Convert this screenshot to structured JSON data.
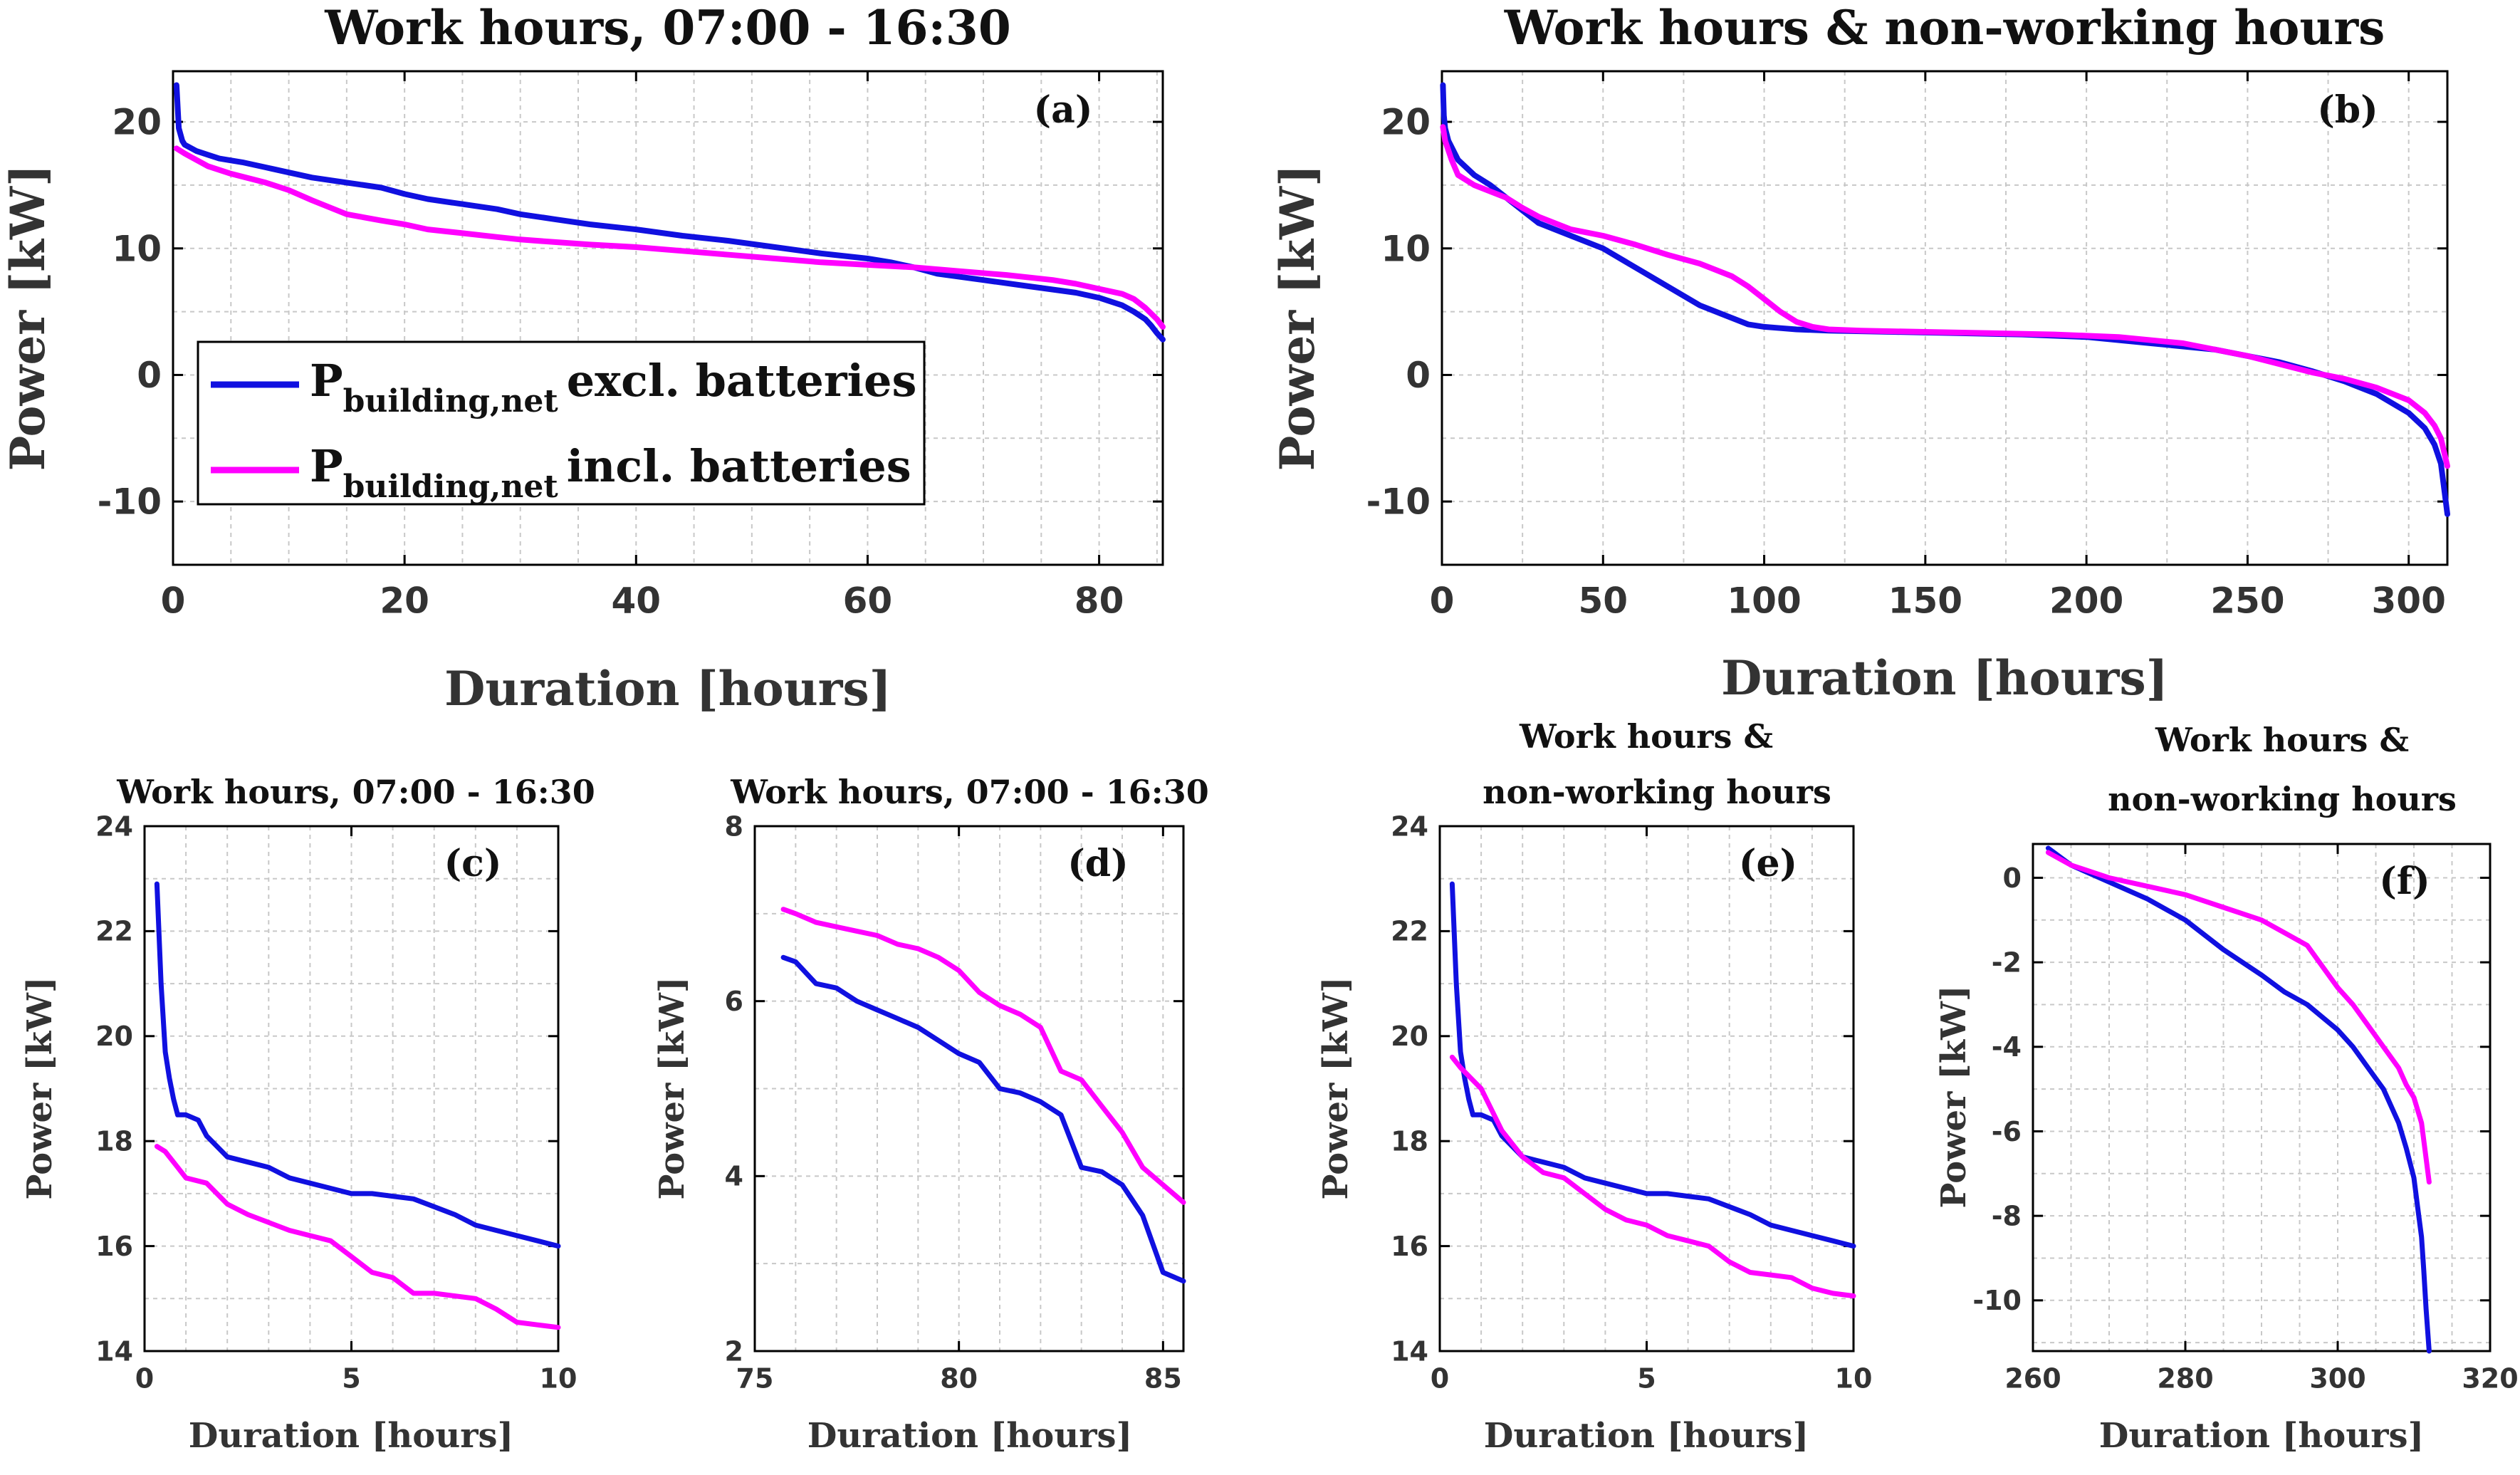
{
  "colors": {
    "excl": "#1010e0",
    "incl": "#ff00ff",
    "grid": "#c8c8c8",
    "axis": "#000000"
  },
  "legend": {
    "items": [
      {
        "name": "P",
        "sub": "building,net",
        "text": "excl. batteries"
      },
      {
        "name": "P",
        "sub": "building,net",
        "text": "incl. batteries"
      }
    ]
  },
  "chart_data": [
    {
      "type": "line",
      "panel": "(a)",
      "title": [
        "Work hours, 07:00 - 16:30"
      ],
      "xlabel": "Duration [hours]",
      "ylabel": "Power [kW]",
      "xlim": [
        0,
        85.5
      ],
      "ylim": [
        -15,
        24
      ],
      "xticks": [
        0,
        20,
        40,
        60,
        80
      ],
      "yticks": [
        -10,
        0,
        10,
        20
      ],
      "grid": true,
      "legend": "middle-left",
      "series": [
        {
          "name": "excl. batteries",
          "x": [
            0.3,
            0.5,
            0.8,
            1,
            2,
            3,
            4,
            6,
            8,
            10,
            12,
            15,
            18,
            20,
            22,
            25,
            28,
            30,
            33,
            36,
            40,
            44,
            48,
            52,
            56,
            60,
            62,
            64,
            66,
            70,
            74,
            78,
            80,
            82,
            83,
            84,
            84.5,
            85,
            85.5
          ],
          "y": [
            22.9,
            19.5,
            18.5,
            18.2,
            17.7,
            17.4,
            17.1,
            16.8,
            16.4,
            16.0,
            15.6,
            15.2,
            14.8,
            14.3,
            13.9,
            13.5,
            13.1,
            12.7,
            12.3,
            11.9,
            11.5,
            11.0,
            10.6,
            10.1,
            9.6,
            9.2,
            8.9,
            8.5,
            8.0,
            7.5,
            7.0,
            6.5,
            6.1,
            5.5,
            5.0,
            4.4,
            3.9,
            3.3,
            2.8
          ]
        },
        {
          "name": "incl. batteries",
          "x": [
            0.3,
            1,
            2,
            3,
            5,
            8,
            10,
            12,
            15,
            18,
            20,
            22,
            25,
            28,
            30,
            33,
            36,
            40,
            44,
            48,
            52,
            56,
            60,
            64,
            68,
            72,
            76,
            78,
            80,
            82,
            83,
            84,
            85,
            85.5
          ],
          "y": [
            17.9,
            17.5,
            17.0,
            16.5,
            15.9,
            15.2,
            14.6,
            13.8,
            12.7,
            12.2,
            11.9,
            11.5,
            11.2,
            10.9,
            10.7,
            10.5,
            10.3,
            10.1,
            9.8,
            9.5,
            9.2,
            8.9,
            8.7,
            8.5,
            8.2,
            7.9,
            7.5,
            7.2,
            6.8,
            6.4,
            6.0,
            5.3,
            4.4,
            3.8
          ]
        }
      ]
    },
    {
      "type": "line",
      "panel": "(b)",
      "title": [
        "Work hours & non-working hours"
      ],
      "xlabel": "Duration [hours]",
      "ylabel": "Power [kW]",
      "xlim": [
        0,
        312
      ],
      "ylim": [
        -15,
        24
      ],
      "xticks": [
        0,
        50,
        100,
        150,
        200,
        250,
        300
      ],
      "yticks": [
        -10,
        0,
        10,
        20
      ],
      "grid": true,
      "legend": "none",
      "series": [
        {
          "name": "excl. batteries",
          "x": [
            0.3,
            0.6,
            1,
            2,
            5,
            10,
            15,
            20,
            25,
            30,
            40,
            50,
            60,
            70,
            80,
            90,
            95,
            100,
            105,
            110,
            120,
            140,
            160,
            180,
            200,
            220,
            240,
            260,
            270,
            280,
            290,
            300,
            305,
            308,
            310,
            311,
            312
          ],
          "y": [
            22.9,
            20.5,
            19.5,
            18.5,
            17.0,
            15.8,
            15.0,
            14.0,
            13.0,
            12.0,
            11.0,
            10.0,
            8.5,
            7.0,
            5.5,
            4.5,
            4.0,
            3.8,
            3.7,
            3.6,
            3.5,
            3.4,
            3.3,
            3.2,
            3.0,
            2.5,
            2.0,
            1.0,
            0.3,
            -0.5,
            -1.5,
            -3.0,
            -4.2,
            -5.5,
            -7.0,
            -9.0,
            -11.0
          ]
        },
        {
          "name": "incl. batteries",
          "x": [
            0.3,
            1,
            3,
            5,
            10,
            15,
            20,
            25,
            30,
            40,
            50,
            60,
            70,
            80,
            90,
            95,
            100,
            105,
            110,
            115,
            120,
            130,
            150,
            170,
            190,
            210,
            230,
            250,
            270,
            280,
            290,
            300,
            305,
            308,
            310,
            312
          ],
          "y": [
            19.6,
            18.5,
            17.0,
            15.8,
            15.0,
            14.5,
            14.0,
            13.2,
            12.5,
            11.5,
            11.0,
            10.3,
            9.5,
            8.8,
            7.8,
            7.0,
            6.0,
            5.0,
            4.2,
            3.8,
            3.6,
            3.5,
            3.4,
            3.3,
            3.2,
            3.0,
            2.5,
            1.5,
            0.2,
            -0.3,
            -1.0,
            -2.0,
            -3.0,
            -4.0,
            -5.0,
            -7.2
          ]
        }
      ]
    },
    {
      "type": "line",
      "panel": "(c)",
      "title": [
        "Work hours, 07:00 - 16:30"
      ],
      "xlabel": "Duration [hours]",
      "ylabel": "Power [kW]",
      "xlim": [
        0,
        10
      ],
      "ylim": [
        14,
        24
      ],
      "xticks": [
        0,
        5,
        10
      ],
      "yticks": [
        14,
        16,
        18,
        20,
        22,
        24
      ],
      "grid": true,
      "legend": "none",
      "series": [
        {
          "name": "excl. batteries",
          "x": [
            0.3,
            0.4,
            0.5,
            0.6,
            0.7,
            0.8,
            1.0,
            1.3,
            1.5,
            2.0,
            2.5,
            3.0,
            3.5,
            4.0,
            4.5,
            5.0,
            5.5,
            6.0,
            6.5,
            7.0,
            7.5,
            8.0,
            8.5,
            9.0,
            9.5,
            10.0
          ],
          "y": [
            22.9,
            21.0,
            19.7,
            19.2,
            18.8,
            18.5,
            18.5,
            18.4,
            18.1,
            17.7,
            17.6,
            17.5,
            17.3,
            17.2,
            17.1,
            17.0,
            17.0,
            16.95,
            16.9,
            16.75,
            16.6,
            16.4,
            16.3,
            16.2,
            16.1,
            16.0
          ]
        },
        {
          "name": "incl. batteries",
          "x": [
            0.3,
            0.5,
            0.8,
            1.0,
            1.5,
            2.0,
            2.5,
            3.0,
            3.5,
            4.0,
            4.5,
            5.0,
            5.5,
            6.0,
            6.5,
            7.0,
            7.5,
            8.0,
            8.5,
            9.0,
            9.5,
            10.0
          ],
          "y": [
            17.9,
            17.8,
            17.5,
            17.3,
            17.2,
            16.8,
            16.6,
            16.45,
            16.3,
            16.2,
            16.1,
            15.8,
            15.5,
            15.4,
            15.1,
            15.1,
            15.05,
            15.0,
            14.8,
            14.55,
            14.5,
            14.45
          ]
        }
      ]
    },
    {
      "type": "line",
      "panel": "(d)",
      "title": [
        "Work hours, 07:00 - 16:30"
      ],
      "xlabel": "Duration [hours]",
      "ylabel": "Power [kW]",
      "xlim": [
        75,
        85.5
      ],
      "ylim": [
        2,
        8
      ],
      "xticks": [
        75,
        80,
        85
      ],
      "yticks": [
        2,
        4,
        6,
        8
      ],
      "grid": true,
      "legend": "none",
      "series": [
        {
          "name": "excl. batteries",
          "x": [
            75.7,
            76,
            76.5,
            77,
            77.5,
            78,
            78.5,
            79,
            79.5,
            80,
            80.5,
            81,
            81.5,
            82,
            82.5,
            83,
            83.5,
            84,
            84.5,
            85,
            85.5
          ],
          "y": [
            6.5,
            6.45,
            6.2,
            6.15,
            6.0,
            5.9,
            5.8,
            5.7,
            5.55,
            5.4,
            5.3,
            5.0,
            4.95,
            4.85,
            4.7,
            4.1,
            4.05,
            3.9,
            3.55,
            2.9,
            2.8
          ]
        },
        {
          "name": "incl. batteries",
          "x": [
            75.7,
            76,
            76.5,
            77,
            77.5,
            78,
            78.5,
            79,
            79.5,
            80,
            80.5,
            81,
            81.5,
            82,
            82.5,
            83,
            83.5,
            84,
            84.5,
            85,
            85.5
          ],
          "y": [
            7.05,
            7.0,
            6.9,
            6.85,
            6.8,
            6.75,
            6.65,
            6.6,
            6.5,
            6.35,
            6.1,
            5.95,
            5.85,
            5.7,
            5.2,
            5.1,
            4.8,
            4.5,
            4.1,
            3.9,
            3.7
          ]
        }
      ]
    },
    {
      "type": "line",
      "panel": "(e)",
      "title": [
        "Work hours &",
        "non-working hours"
      ],
      "xlabel": "Duration [hours]",
      "ylabel": "Power [kW]",
      "xlim": [
        0,
        10
      ],
      "ylim": [
        14,
        24
      ],
      "xticks": [
        0,
        5,
        10
      ],
      "yticks": [
        14,
        16,
        18,
        20,
        22,
        24
      ],
      "grid": true,
      "legend": "none",
      "series": [
        {
          "name": "excl. batteries",
          "x": [
            0.3,
            0.4,
            0.5,
            0.6,
            0.7,
            0.8,
            1.0,
            1.3,
            1.5,
            2.0,
            2.5,
            3.0,
            3.5,
            4.0,
            4.5,
            5.0,
            5.5,
            6.0,
            6.5,
            7.0,
            7.5,
            8.0,
            8.5,
            9.0,
            9.5,
            10.0
          ],
          "y": [
            22.9,
            21.0,
            19.7,
            19.2,
            18.8,
            18.5,
            18.5,
            18.4,
            18.1,
            17.7,
            17.6,
            17.5,
            17.3,
            17.2,
            17.1,
            17.0,
            17.0,
            16.95,
            16.9,
            16.75,
            16.6,
            16.4,
            16.3,
            16.2,
            16.1,
            16.0
          ]
        },
        {
          "name": "incl. batteries",
          "x": [
            0.3,
            0.5,
            1.0,
            1.5,
            2.0,
            2.5,
            3.0,
            3.5,
            4.0,
            4.5,
            5.0,
            5.5,
            6.0,
            6.5,
            7.0,
            7.5,
            8.0,
            8.5,
            9.0,
            9.5,
            10.0
          ],
          "y": [
            19.6,
            19.4,
            19.0,
            18.2,
            17.7,
            17.4,
            17.3,
            17.0,
            16.7,
            16.5,
            16.4,
            16.2,
            16.1,
            16.0,
            15.7,
            15.5,
            15.45,
            15.4,
            15.2,
            15.1,
            15.05
          ]
        }
      ]
    },
    {
      "type": "line",
      "panel": "(f)",
      "title": [
        "Work hours &",
        "non-working hours"
      ],
      "xlabel": "Duration [hours]",
      "ylabel": "Power [kW]",
      "xlim": [
        260,
        320
      ],
      "ylim": [
        -11.2,
        0.8
      ],
      "xticks": [
        260,
        280,
        300,
        320
      ],
      "yticks": [
        -10,
        -8,
        -6,
        -4,
        -2,
        0
      ],
      "grid": true,
      "legend": "none",
      "series": [
        {
          "name": "excl. batteries",
          "x": [
            262,
            265,
            270,
            275,
            280,
            285,
            290,
            293,
            296,
            298,
            300,
            302,
            304,
            306,
            308,
            309,
            310,
            310.5,
            311,
            311.3,
            311.6,
            312
          ],
          "y": [
            0.7,
            0.3,
            -0.1,
            -0.5,
            -1.0,
            -1.7,
            -2.3,
            -2.7,
            -3.0,
            -3.3,
            -3.6,
            -4.0,
            -4.5,
            -5.0,
            -5.8,
            -6.4,
            -7.1,
            -7.8,
            -8.5,
            -9.3,
            -10.2,
            -11.2
          ]
        },
        {
          "name": "incl. batteries",
          "x": [
            262,
            265,
            270,
            275,
            280,
            285,
            290,
            293,
            296,
            298,
            300,
            302,
            304,
            306,
            308,
            309,
            310,
            311,
            312
          ],
          "y": [
            0.6,
            0.3,
            0.0,
            -0.2,
            -0.4,
            -0.7,
            -1.0,
            -1.3,
            -1.6,
            -2.1,
            -2.6,
            -3.0,
            -3.5,
            -4.0,
            -4.5,
            -4.9,
            -5.2,
            -5.8,
            -7.2
          ]
        }
      ]
    }
  ]
}
